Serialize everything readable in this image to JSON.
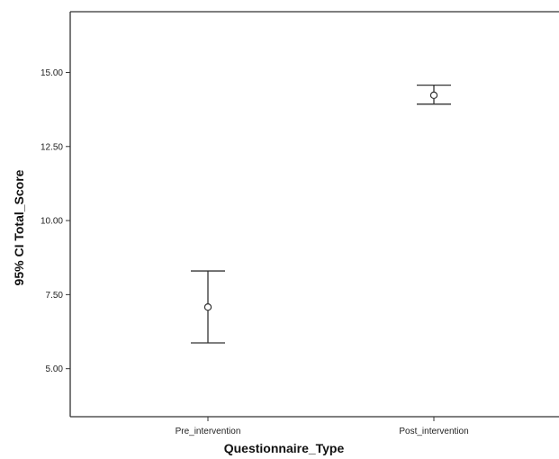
{
  "chart_data": {
    "type": "errorbar",
    "title": "",
    "xlabel": "Questionnaire_Type",
    "ylabel": "95% CI Total_Score",
    "categories": [
      "Pre_intervention",
      "Post_intervention"
    ],
    "series": [
      {
        "points": [
          {
            "category": "Pre_intervention",
            "mean": 7.08,
            "ci_lower": 5.87,
            "ci_upper": 8.3
          },
          {
            "category": "Post_intervention",
            "mean": 14.23,
            "ci_lower": 13.93,
            "ci_upper": 14.57
          }
        ]
      }
    ],
    "y_ticks": [
      "5.00",
      "7.50",
      "10.00",
      "12.50",
      "15.00"
    ],
    "y_tick_values": [
      5,
      7.5,
      10,
      12.5,
      15
    ],
    "ylim": [
      3.38,
      17.05
    ],
    "grid": false,
    "legend": "none",
    "colors": {
      "frame": "#333333",
      "marker": "#333333",
      "text": "#222222"
    }
  }
}
